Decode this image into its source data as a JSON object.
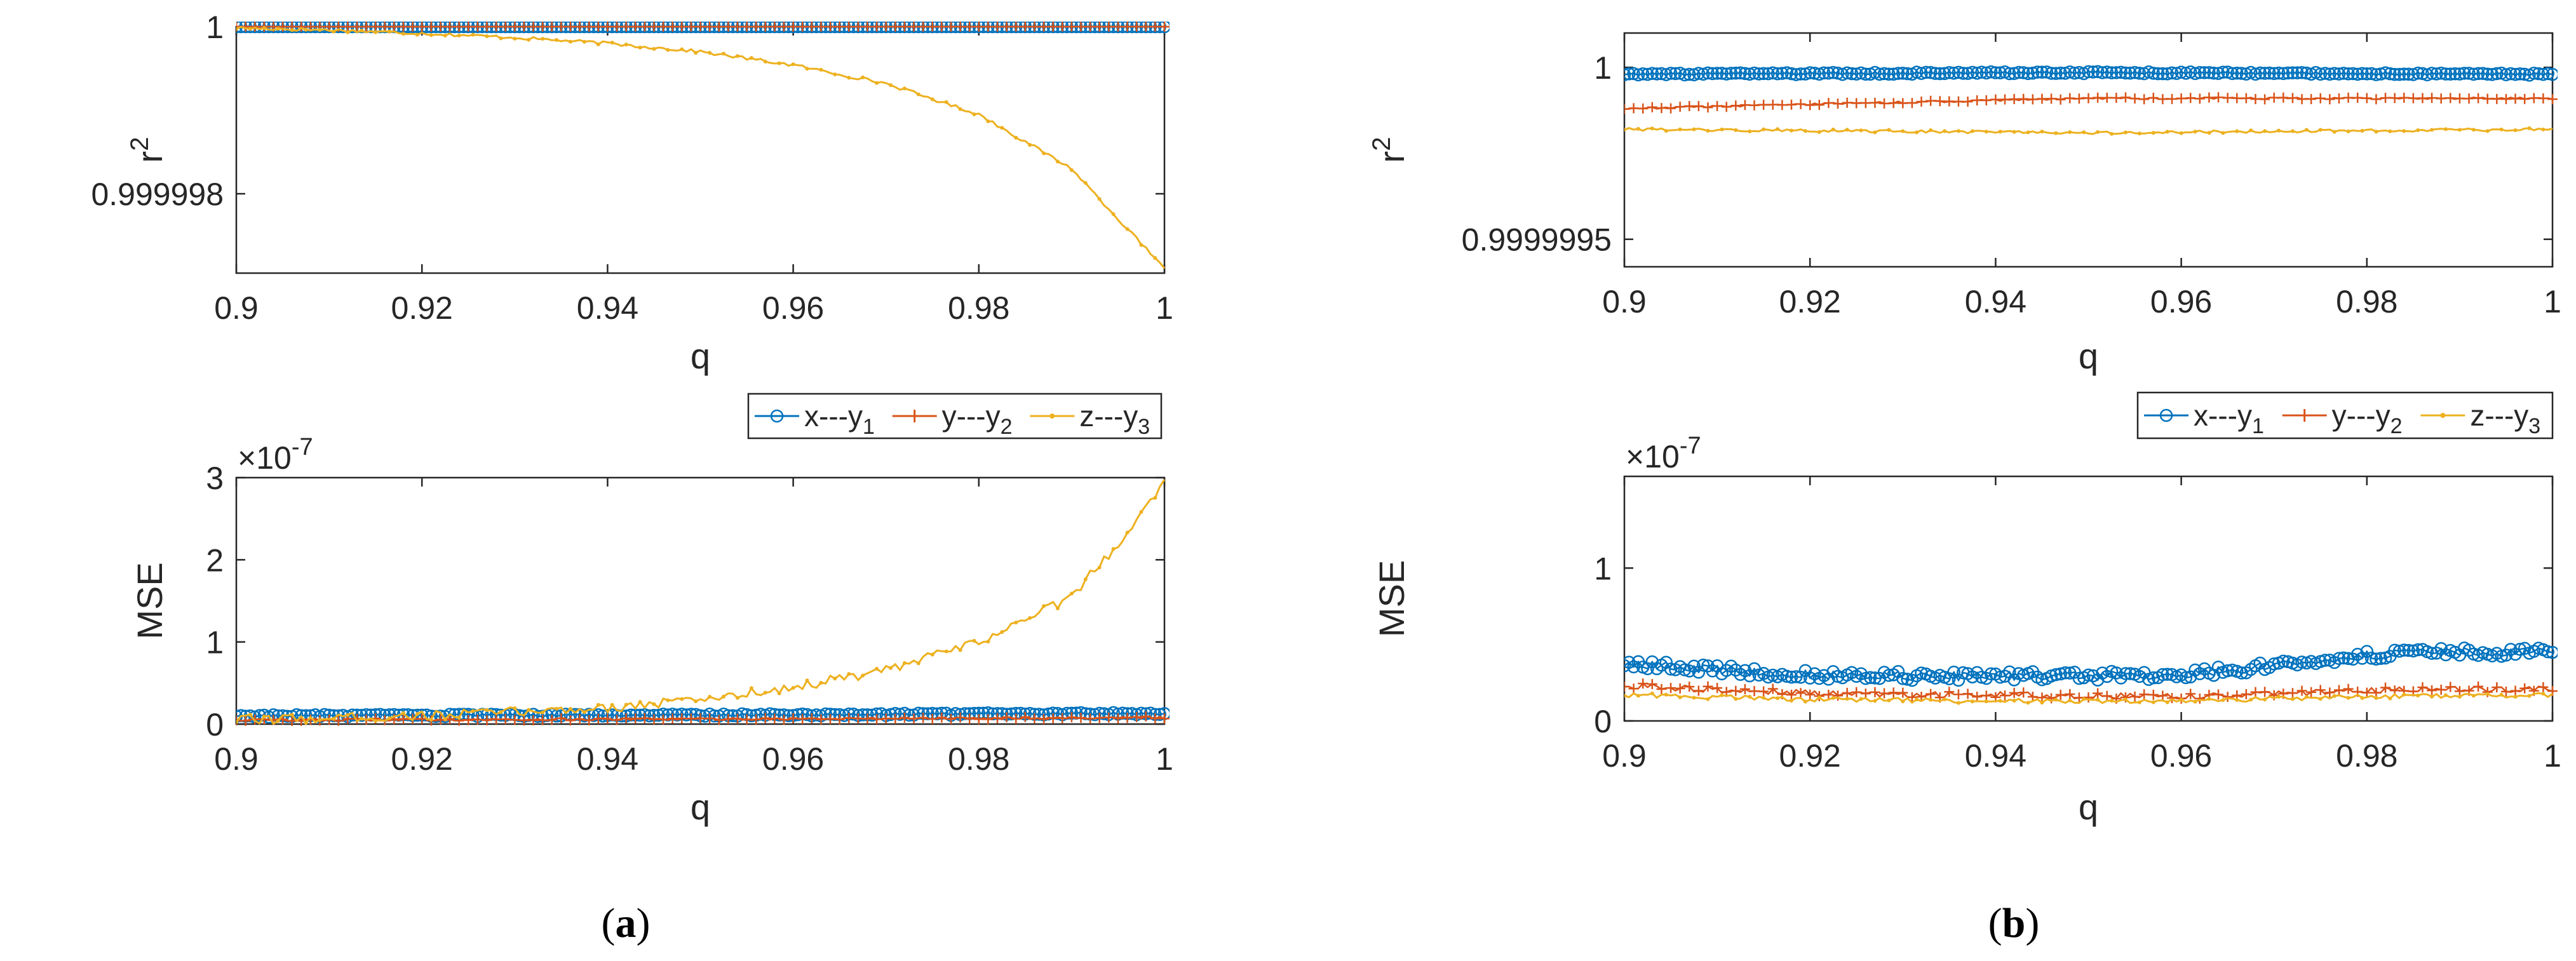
{
  "series_names": [
    "x---y",
    "y---y",
    "z---y"
  ],
  "series_subscripts": [
    "1",
    "2",
    "3"
  ],
  "series_colors": [
    "#0072BD",
    "#D95319",
    "#EDB120"
  ],
  "series_markers": [
    "circle",
    "plus",
    "dot"
  ],
  "panel_labels": [
    {
      "text": "a",
      "left": "(",
      "right": ")"
    },
    {
      "text": "b",
      "left": "(",
      "right": ")"
    }
  ],
  "chart_data": [
    {
      "id": "a_r2",
      "type": "line",
      "panel": "a",
      "xlabel": "q",
      "ylabel": "r",
      "ylabel_sup": "2",
      "xlim": [
        0.9,
        1.0
      ],
      "ylim": [
        0.99999705,
        1.0
      ],
      "xticks": [
        0.9,
        0.92,
        0.94,
        0.96,
        0.98,
        1.0
      ],
      "xtick_labels": [
        "0.9",
        "0.92",
        "0.94",
        "0.96",
        "0.98",
        "1"
      ],
      "yticks": [
        0.999998,
        1.0
      ],
      "ytick_labels": [
        "0.999998",
        "1"
      ],
      "series": [
        {
          "name": "x---y1",
          "x": [
            0.9,
            1.0
          ],
          "y": [
            1.0,
            1.0
          ],
          "noise": 0
        },
        {
          "name": "y---y2",
          "x": [
            0.9,
            1.0
          ],
          "y": [
            1.0,
            1.0
          ],
          "noise": 0
        },
        {
          "name": "z---y3",
          "x": [
            0.9,
            0.91,
            0.92,
            0.93,
            0.94,
            0.95,
            0.96,
            0.97,
            0.98,
            0.99,
            0.995,
            1.0
          ],
          "y": [
            0.999999985,
            0.99999996,
            0.99999992,
            0.99999987,
            0.9999998,
            0.9999997,
            0.99999954,
            0.99999932,
            0.99999895,
            0.9999983,
            0.9999977,
            0.9999971
          ],
          "noise": 2e-08
        }
      ]
    },
    {
      "id": "a_mse",
      "type": "line",
      "panel": "a",
      "xlabel": "q",
      "ylabel": "MSE",
      "exponent_base": "×10",
      "exponent": "-7",
      "xlim": [
        0.9,
        1.0
      ],
      "ylim": [
        0,
        3.0
      ],
      "xticks": [
        0.9,
        0.92,
        0.94,
        0.96,
        0.98,
        1.0
      ],
      "xtick_labels": [
        "0.9",
        "0.92",
        "0.94",
        "0.96",
        "0.98",
        "1"
      ],
      "yticks": [
        0,
        1,
        2,
        3
      ],
      "ytick_labels": [
        "0",
        "1",
        "2",
        "3"
      ],
      "series": [
        {
          "name": "x---y1",
          "x": [
            0.9,
            0.95,
            1.0
          ],
          "y": [
            0.1,
            0.11,
            0.13
          ],
          "noise": 0.015
        },
        {
          "name": "y---y2",
          "x": [
            0.9,
            0.95,
            1.0
          ],
          "y": [
            0.05,
            0.06,
            0.08
          ],
          "noise": 0.015
        },
        {
          "name": "z---y3",
          "x": [
            0.9,
            0.92,
            0.94,
            0.95,
            0.96,
            0.97,
            0.98,
            0.99,
            0.995,
            1.0
          ],
          "y": [
            0.05,
            0.1,
            0.2,
            0.3,
            0.45,
            0.65,
            1.0,
            1.55,
            2.2,
            2.95
          ],
          "noise": 0.06
        }
      ]
    },
    {
      "id": "b_r2",
      "type": "line",
      "panel": "b",
      "xlabel": "q",
      "ylabel": "r",
      "ylabel_sup": "2",
      "xlim": [
        0.9,
        1.0
      ],
      "ylim": [
        0.99999942,
        1.0000001
      ],
      "xticks": [
        0.9,
        0.92,
        0.94,
        0.96,
        0.98,
        1.0
      ],
      "xtick_labels": [
        "0.9",
        "0.92",
        "0.94",
        "0.96",
        "0.98",
        "1"
      ],
      "yticks": [
        0.9999995,
        1.0
      ],
      "ytick_labels": [
        "0.9999995",
        "1"
      ],
      "series": [
        {
          "name": "x---y1",
          "x": [
            0.9,
            0.95,
            1.0
          ],
          "y": [
            0.99999998,
            0.999999985,
            0.99999998
          ],
          "noise": 3e-09
        },
        {
          "name": "y---y2",
          "x": [
            0.9,
            0.915,
            0.95,
            1.0
          ],
          "y": [
            0.99999988,
            0.99999989,
            0.99999991,
            0.99999991
          ],
          "noise": 3e-09
        },
        {
          "name": "z---y3",
          "x": [
            0.9,
            0.95,
            1.0
          ],
          "y": [
            0.99999982,
            0.99999981,
            0.99999982
          ],
          "noise": 4e-09
        }
      ]
    },
    {
      "id": "b_mse",
      "type": "line",
      "panel": "b",
      "xlabel": "q",
      "ylabel": "MSE",
      "exponent_base": "×10",
      "exponent": "-7",
      "xlim": [
        0.9,
        1.0
      ],
      "ylim": [
        0,
        1.6
      ],
      "xticks": [
        0.9,
        0.92,
        0.94,
        0.96,
        0.98,
        1.0
      ],
      "xtick_labels": [
        "0.9",
        "0.92",
        "0.94",
        "0.96",
        "0.98",
        "1"
      ],
      "yticks": [
        0,
        1
      ],
      "ytick_labels": [
        "0",
        "1"
      ],
      "series": [
        {
          "name": "x---y1",
          "x": [
            0.9,
            0.92,
            0.94,
            0.96,
            0.97,
            0.98,
            0.99,
            1.0
          ],
          "y": [
            0.37,
            0.3,
            0.29,
            0.3,
            0.36,
            0.43,
            0.45,
            0.45
          ],
          "noise": 0.03
        },
        {
          "name": "y---y2",
          "x": [
            0.9,
            0.92,
            0.94,
            0.96,
            0.98,
            1.0
          ],
          "y": [
            0.23,
            0.18,
            0.17,
            0.16,
            0.2,
            0.21
          ],
          "noise": 0.02
        },
        {
          "name": "z---y3",
          "x": [
            0.9,
            0.92,
            0.94,
            0.96,
            0.98,
            1.0
          ],
          "y": [
            0.17,
            0.14,
            0.13,
            0.13,
            0.16,
            0.17
          ],
          "noise": 0.015
        }
      ]
    }
  ]
}
